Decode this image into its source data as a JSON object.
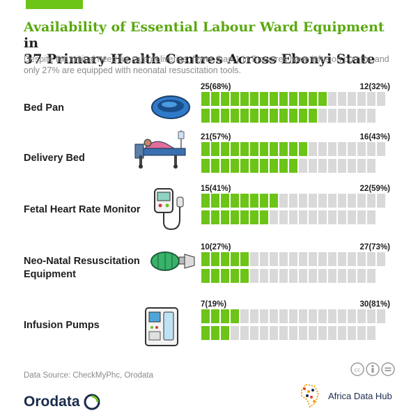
{
  "title_accent": "Availability of Essential Labour Ward Equipment",
  "title_rest_1": " in",
  "title_line_2": "37 Primary Health Centres Across Ebonyi State",
  "subtitle": "Despite the critical need for safe deliveries, fewer than 1 in 5 centres have infusion pumps, and only 27% are equipped with neonatal resuscitation tools.",
  "source": "Data Source: CheckMyPhc, Orodata",
  "brand_left": "Orodata",
  "brand_right": "Africa Data Hub",
  "colors": {
    "available": "#6cc417",
    "unavailable": "#d9d9d9",
    "accent_title": "#5aa80f"
  },
  "chart_data": {
    "type": "waffle",
    "title": "Availability of Essential Labour Ward Equipment in 37 Primary Health Centres Across Ebonyi State",
    "total_per_item": 37,
    "series": [
      {
        "name": "available"
      },
      {
        "name": "unavailable"
      }
    ],
    "categories": [
      "Bed Pan",
      "Delivery Bed",
      "Fetal Heart Rate Monitor",
      "Neo-Natal Resuscitation Equipment",
      "Infusion Pumps"
    ],
    "rows": [
      {
        "label_lines": [
          "Bed Pan"
        ],
        "icon": "bed-pan-icon",
        "available": 25,
        "unavailable": 12,
        "left_label": "25(68%)",
        "right_label": "12(32%)"
      },
      {
        "label_lines": [
          "Delivery Bed"
        ],
        "icon": "delivery-bed-icon",
        "available": 21,
        "unavailable": 16,
        "left_label": "21(57%)",
        "right_label": "16(43%)"
      },
      {
        "label_lines": [
          "Fetal Heart Rate Monitor"
        ],
        "icon": "heart-monitor-icon",
        "available": 15,
        "unavailable": 22,
        "left_label": "15(41%)",
        "right_label": "22(59%)"
      },
      {
        "label_lines": [
          "Neo-Natal Resuscitation",
          "Equipment"
        ],
        "icon": "resuscitator-icon",
        "available": 10,
        "unavailable": 27,
        "left_label": "10(27%)",
        "right_label": "27(73%)"
      },
      {
        "label_lines": [
          "Infusion Pumps"
        ],
        "icon": "infusion-pump-icon",
        "available": 7,
        "unavailable": 30,
        "left_label": "7(19%)",
        "right_label": "30(81%)"
      }
    ]
  }
}
